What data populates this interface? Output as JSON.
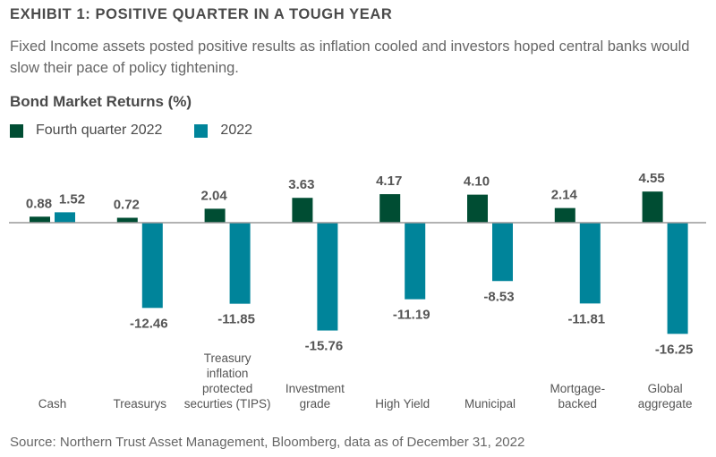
{
  "header": {
    "title": "EXHIBIT 1: POSITIVE QUARTER IN A TOUGH YEAR",
    "subtitle": "Fixed Income assets posted positive results as inflation cooled and investors hoped central banks would slow their pace of policy tightening."
  },
  "footer": {
    "source": "Source: Northern Trust Asset Management, Bloomberg, data as of December 31, 2022"
  },
  "colors": {
    "q4": "#004d33",
    "year": "#00849a",
    "axis": "#999999"
  },
  "chart_data": {
    "type": "bar",
    "title": "Bond Market Returns (%)",
    "xlabel": "",
    "ylabel": "",
    "ylim": [
      -17,
      5
    ],
    "grid": false,
    "legend_position": "top-left",
    "categories": [
      [
        "Cash"
      ],
      [
        "Treasurys"
      ],
      [
        "Treasury",
        "inflation",
        "protected",
        "securties (TIPS)"
      ],
      [
        "Investment",
        "grade"
      ],
      [
        "High Yield"
      ],
      [
        "Municipal"
      ],
      [
        "Mortgage-",
        "backed"
      ],
      [
        "Global",
        "aggregate"
      ]
    ],
    "series": [
      {
        "name": "Fourth quarter 2022",
        "color": "#004d33",
        "values": [
          0.88,
          0.72,
          2.04,
          3.63,
          4.17,
          4.1,
          2.14,
          4.55
        ],
        "labels": [
          "0.88",
          "0.72",
          "2.04",
          "3.63",
          "4.17",
          "4.10",
          "2.14",
          "4.55"
        ]
      },
      {
        "name": "2022",
        "color": "#00849a",
        "values": [
          1.52,
          -12.46,
          -11.85,
          -15.76,
          -11.19,
          -8.53,
          -11.81,
          -16.25
        ],
        "labels": [
          "1.52",
          "-12.46",
          "-11.85",
          "-15.76",
          "-11.19",
          "-8.53",
          "-11.81",
          "-16.25"
        ]
      }
    ]
  }
}
